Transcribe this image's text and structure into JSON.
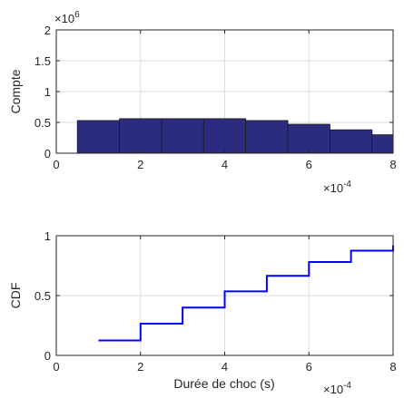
{
  "chart_data": [
    {
      "type": "bar",
      "ylabel": "Compte",
      "xlim": [
        0,
        8
      ],
      "ylim": [
        0,
        2
      ],
      "x_ticks": [
        "0",
        "2",
        "4",
        "6",
        "8"
      ],
      "y_ticks": [
        "0",
        "0.5",
        "1",
        "1.5",
        "2"
      ],
      "x_multiplier": {
        "base": "×10",
        "exp": "-4"
      },
      "y_multiplier": {
        "base": "×10",
        "exp": "6"
      },
      "grid": true,
      "bar_color": "#2B2B7F",
      "bins": [
        {
          "x0": 0.5,
          "x1": 1.5,
          "value": 0.53
        },
        {
          "x0": 1.5,
          "x1": 2.5,
          "value": 0.56
        },
        {
          "x0": 2.5,
          "x1": 3.5,
          "value": 0.56
        },
        {
          "x0": 3.5,
          "x1": 4.5,
          "value": 0.56
        },
        {
          "x0": 4.5,
          "x1": 5.5,
          "value": 0.53
        },
        {
          "x0": 5.5,
          "x1": 6.5,
          "value": 0.47
        },
        {
          "x0": 6.5,
          "x1": 7.5,
          "value": 0.38
        },
        {
          "x0": 7.5,
          "x1": 8.0,
          "value": 0.3
        }
      ]
    },
    {
      "type": "line",
      "xlabel": "Durée de choc (s)",
      "ylabel": "CDF",
      "xlim": [
        0,
        8
      ],
      "ylim": [
        0,
        1
      ],
      "x_ticks": [
        "0",
        "2",
        "4",
        "6",
        "8"
      ],
      "y_ticks": [
        "0",
        "0.5",
        "1"
      ],
      "x_multiplier": {
        "base": "×10",
        "exp": "-4"
      },
      "grid": true,
      "line_color": "#0000FF",
      "step_points": [
        {
          "x": 1,
          "y": 0.125
        },
        {
          "x": 2,
          "y": 0.125
        },
        {
          "x": 2,
          "y": 0.265
        },
        {
          "x": 3,
          "y": 0.265
        },
        {
          "x": 3,
          "y": 0.4
        },
        {
          "x": 4,
          "y": 0.4
        },
        {
          "x": 4,
          "y": 0.535
        },
        {
          "x": 5,
          "y": 0.535
        },
        {
          "x": 5,
          "y": 0.665
        },
        {
          "x": 6,
          "y": 0.665
        },
        {
          "x": 6,
          "y": 0.78
        },
        {
          "x": 7,
          "y": 0.78
        },
        {
          "x": 7,
          "y": 0.875
        },
        {
          "x": 8,
          "y": 0.875
        },
        {
          "x": 8,
          "y": 0.92
        }
      ]
    }
  ]
}
